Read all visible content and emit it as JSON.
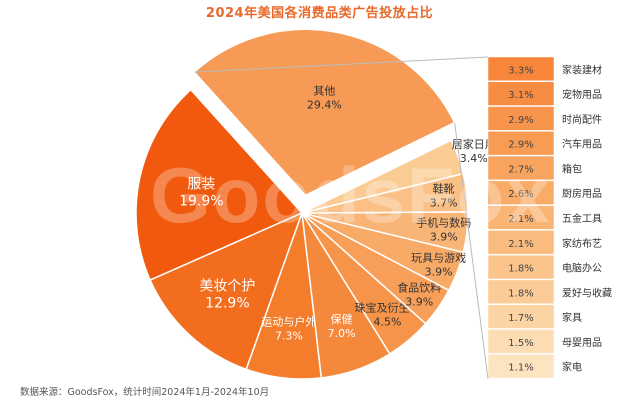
{
  "chart_data": {
    "type": "pie",
    "title": "2024年美国各消费品类广告投放占比",
    "source": "数据来源：GoodsFox，统计时间2024年1月-2024年10月",
    "watermark": "GoodsFox",
    "slices": [
      {
        "label": "服装",
        "value": 19.9
      },
      {
        "label": "美妆个护",
        "value": 12.9
      },
      {
        "label": "运动与户外",
        "value": 7.3
      },
      {
        "label": "保健",
        "value": 7.0
      },
      {
        "label": "珠宝及衍生物",
        "value": 4.5
      },
      {
        "label": "食品饮料",
        "value": 3.9
      },
      {
        "label": "玩具与游戏",
        "value": 3.9
      },
      {
        "label": "手机与数码",
        "value": 3.9
      },
      {
        "label": "鞋靴",
        "value": 3.7
      },
      {
        "label": "居家日用",
        "value": 3.4
      },
      {
        "label": "其他",
        "value": 29.4
      }
    ],
    "breakdown": {
      "parent": "其他",
      "items": [
        {
          "label": "家装建材",
          "value": 3.3
        },
        {
          "label": "宠物用品",
          "value": 3.1
        },
        {
          "label": "时尚配件",
          "value": 2.9
        },
        {
          "label": "汽车用品",
          "value": 2.9
        },
        {
          "label": "箱包",
          "value": 2.7
        },
        {
          "label": "厨房用品",
          "value": 2.6
        },
        {
          "label": "五金工具",
          "value": 2.1
        },
        {
          "label": "家纺布艺",
          "value": 2.1
        },
        {
          "label": "电脑办公",
          "value": 1.8
        },
        {
          "label": "爱好与收藏",
          "value": 1.8
        },
        {
          "label": "家具",
          "value": 1.7
        },
        {
          "label": "母婴用品",
          "value": 1.5
        },
        {
          "label": "家电",
          "value": 1.1
        }
      ]
    },
    "colors": {
      "title": "#e8692b",
      "slices": [
        "#f15a0e",
        "#f26d1d",
        "#f47d2c",
        "#f5893b",
        "#f69449",
        "#f79f58",
        "#f8aa67",
        "#f9b576",
        "#fac085",
        "#fbcb94",
        "#f79a55"
      ],
      "bars": [
        "#f7853a",
        "#f78d42",
        "#f8944b",
        "#f89c54",
        "#f9a45e",
        "#f9ac68",
        "#fab473",
        "#fabc7e",
        "#fbc48a",
        "#fbcc97",
        "#fcd4a4",
        "#fcdcb2",
        "#fde4c1"
      ]
    }
  }
}
